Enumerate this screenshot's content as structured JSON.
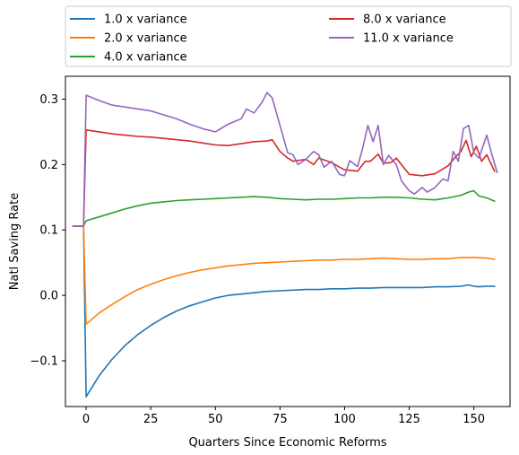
{
  "chart_data": {
    "type": "line",
    "title": "",
    "xlabel": "Quarters Since Economic Reforms",
    "ylabel": "Natl Saving Rate",
    "xlim": [
      -8,
      164
    ],
    "ylim": [
      -0.17,
      0.335
    ],
    "xticks": [
      0,
      25,
      50,
      75,
      100,
      125,
      150
    ],
    "xtick_labels": [
      "0",
      "25",
      "50",
      "75",
      "100",
      "125",
      "150"
    ],
    "yticks": [
      -0.1,
      0.0,
      0.1,
      0.2,
      0.3
    ],
    "ytick_labels": [
      "−0.1",
      "0.0",
      "0.1",
      "0.2",
      "0.3"
    ],
    "grid": false,
    "legend_placement": "top, above plot, two columns",
    "series": [
      {
        "name": "1.0 x variance",
        "color": "#1f77b4",
        "points": [
          [
            -5,
            0.106
          ],
          [
            -1,
            0.106
          ],
          [
            0,
            -0.155
          ],
          [
            5,
            -0.123
          ],
          [
            10,
            -0.098
          ],
          [
            15,
            -0.077
          ],
          [
            20,
            -0.06
          ],
          [
            25,
            -0.046
          ],
          [
            30,
            -0.034
          ],
          [
            35,
            -0.024
          ],
          [
            40,
            -0.016
          ],
          [
            45,
            -0.01
          ],
          [
            50,
            -0.004
          ],
          [
            55,
            0.0
          ],
          [
            60,
            0.002
          ],
          [
            65,
            0.004
          ],
          [
            70,
            0.006
          ],
          [
            75,
            0.007
          ],
          [
            80,
            0.008
          ],
          [
            85,
            0.009
          ],
          [
            90,
            0.009
          ],
          [
            95,
            0.01
          ],
          [
            100,
            0.01
          ],
          [
            105,
            0.011
          ],
          [
            110,
            0.011
          ],
          [
            115,
            0.012
          ],
          [
            120,
            0.012
          ],
          [
            125,
            0.012
          ],
          [
            130,
            0.012
          ],
          [
            135,
            0.013
          ],
          [
            140,
            0.013
          ],
          [
            145,
            0.014
          ],
          [
            148,
            0.016
          ],
          [
            150,
            0.014
          ],
          [
            152,
            0.013
          ],
          [
            155,
            0.014
          ],
          [
            158,
            0.014
          ]
        ]
      },
      {
        "name": "2.0 x variance",
        "color": "#ff7f0e",
        "points": [
          [
            -5,
            0.106
          ],
          [
            -1,
            0.106
          ],
          [
            0,
            -0.044
          ],
          [
            5,
            -0.027
          ],
          [
            10,
            -0.014
          ],
          [
            15,
            -0.002
          ],
          [
            20,
            0.009
          ],
          [
            25,
            0.017
          ],
          [
            30,
            0.024
          ],
          [
            35,
            0.03
          ],
          [
            40,
            0.035
          ],
          [
            45,
            0.039
          ],
          [
            50,
            0.042
          ],
          [
            55,
            0.045
          ],
          [
            60,
            0.047
          ],
          [
            65,
            0.049
          ],
          [
            70,
            0.05
          ],
          [
            75,
            0.051
          ],
          [
            80,
            0.052
          ],
          [
            85,
            0.053
          ],
          [
            90,
            0.054
          ],
          [
            95,
            0.054
          ],
          [
            100,
            0.055
          ],
          [
            105,
            0.055
          ],
          [
            110,
            0.056
          ],
          [
            115,
            0.057
          ],
          [
            120,
            0.056
          ],
          [
            125,
            0.055
          ],
          [
            130,
            0.055
          ],
          [
            135,
            0.056
          ],
          [
            140,
            0.056
          ],
          [
            145,
            0.058
          ],
          [
            150,
            0.058
          ],
          [
            155,
            0.057
          ],
          [
            158,
            0.055
          ]
        ]
      },
      {
        "name": "4.0 x variance",
        "color": "#2ca02c",
        "points": [
          [
            -5,
            0.106
          ],
          [
            -1,
            0.106
          ],
          [
            0,
            0.114
          ],
          [
            5,
            0.12
          ],
          [
            10,
            0.126
          ],
          [
            15,
            0.132
          ],
          [
            20,
            0.137
          ],
          [
            25,
            0.141
          ],
          [
            30,
            0.143
          ],
          [
            35,
            0.145
          ],
          [
            40,
            0.146
          ],
          [
            45,
            0.147
          ],
          [
            50,
            0.148
          ],
          [
            55,
            0.149
          ],
          [
            60,
            0.15
          ],
          [
            65,
            0.151
          ],
          [
            70,
            0.15
          ],
          [
            75,
            0.148
          ],
          [
            80,
            0.147
          ],
          [
            85,
            0.146
          ],
          [
            90,
            0.147
          ],
          [
            95,
            0.147
          ],
          [
            100,
            0.148
          ],
          [
            105,
            0.149
          ],
          [
            110,
            0.149
          ],
          [
            115,
            0.15
          ],
          [
            120,
            0.15
          ],
          [
            125,
            0.149
          ],
          [
            130,
            0.147
          ],
          [
            135,
            0.146
          ],
          [
            140,
            0.149
          ],
          [
            145,
            0.153
          ],
          [
            148,
            0.158
          ],
          [
            150,
            0.16
          ],
          [
            152,
            0.152
          ],
          [
            155,
            0.149
          ],
          [
            158,
            0.144
          ]
        ]
      },
      {
        "name": "8.0 x variance",
        "color": "#d62728",
        "points": [
          [
            -5,
            0.106
          ],
          [
            -1,
            0.106
          ],
          [
            0,
            0.253
          ],
          [
            5,
            0.25
          ],
          [
            10,
            0.247
          ],
          [
            15,
            0.245
          ],
          [
            20,
            0.243
          ],
          [
            25,
            0.242
          ],
          [
            30,
            0.24
          ],
          [
            35,
            0.238
          ],
          [
            40,
            0.236
          ],
          [
            45,
            0.233
          ],
          [
            50,
            0.23
          ],
          [
            55,
            0.229
          ],
          [
            60,
            0.232
          ],
          [
            65,
            0.235
          ],
          [
            70,
            0.236
          ],
          [
            72,
            0.238
          ],
          [
            75,
            0.22
          ],
          [
            78,
            0.21
          ],
          [
            80,
            0.205
          ],
          [
            85,
            0.208
          ],
          [
            88,
            0.2
          ],
          [
            90,
            0.21
          ],
          [
            95,
            0.203
          ],
          [
            98,
            0.196
          ],
          [
            100,
            0.192
          ],
          [
            105,
            0.19
          ],
          [
            108,
            0.205
          ],
          [
            110,
            0.205
          ],
          [
            113,
            0.216
          ],
          [
            115,
            0.202
          ],
          [
            118,
            0.203
          ],
          [
            120,
            0.21
          ],
          [
            125,
            0.185
          ],
          [
            130,
            0.183
          ],
          [
            135,
            0.186
          ],
          [
            140,
            0.198
          ],
          [
            143,
            0.212
          ],
          [
            145,
            0.22
          ],
          [
            147,
            0.237
          ],
          [
            149,
            0.212
          ],
          [
            151,
            0.228
          ],
          [
            153,
            0.205
          ],
          [
            155,
            0.215
          ],
          [
            158,
            0.19
          ]
        ]
      },
      {
        "name": "11.0 x variance",
        "color": "#9467bd",
        "points": [
          [
            -5,
            0.106
          ],
          [
            -1,
            0.106
          ],
          [
            0,
            0.306
          ],
          [
            5,
            0.298
          ],
          [
            10,
            0.291
          ],
          [
            15,
            0.288
          ],
          [
            20,
            0.285
          ],
          [
            25,
            0.282
          ],
          [
            30,
            0.276
          ],
          [
            35,
            0.27
          ],
          [
            40,
            0.262
          ],
          [
            45,
            0.255
          ],
          [
            50,
            0.25
          ],
          [
            55,
            0.262
          ],
          [
            60,
            0.27
          ],
          [
            62,
            0.285
          ],
          [
            65,
            0.279
          ],
          [
            68,
            0.295
          ],
          [
            70,
            0.31
          ],
          [
            72,
            0.302
          ],
          [
            75,
            0.26
          ],
          [
            78,
            0.218
          ],
          [
            80,
            0.215
          ],
          [
            82,
            0.2
          ],
          [
            85,
            0.208
          ],
          [
            88,
            0.22
          ],
          [
            90,
            0.215
          ],
          [
            92,
            0.196
          ],
          [
            95,
            0.205
          ],
          [
            98,
            0.185
          ],
          [
            100,
            0.183
          ],
          [
            102,
            0.206
          ],
          [
            105,
            0.197
          ],
          [
            107,
            0.225
          ],
          [
            109,
            0.26
          ],
          [
            111,
            0.235
          ],
          [
            113,
            0.26
          ],
          [
            115,
            0.2
          ],
          [
            117,
            0.214
          ],
          [
            120,
            0.2
          ],
          [
            122,
            0.175
          ],
          [
            125,
            0.16
          ],
          [
            127,
            0.155
          ],
          [
            130,
            0.165
          ],
          [
            132,
            0.158
          ],
          [
            135,
            0.165
          ],
          [
            138,
            0.178
          ],
          [
            140,
            0.175
          ],
          [
            142,
            0.22
          ],
          [
            144,
            0.205
          ],
          [
            146,
            0.255
          ],
          [
            148,
            0.26
          ],
          [
            150,
            0.218
          ],
          [
            152,
            0.21
          ],
          [
            155,
            0.245
          ],
          [
            157,
            0.215
          ],
          [
            159,
            0.188
          ]
        ]
      }
    ]
  }
}
